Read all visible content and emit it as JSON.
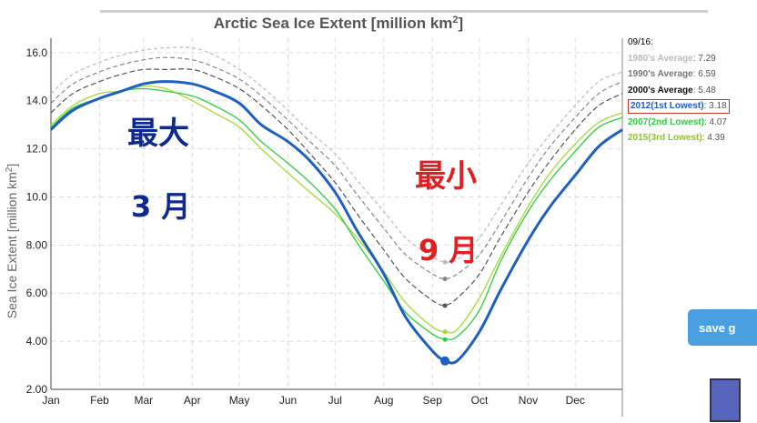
{
  "chart_data": {
    "type": "line",
    "title": "Arctic Sea Ice Extent [million km",
    "title_sup": "2",
    "title_end": "]",
    "ylabel": "Sea Ice Extent [million km",
    "ylabel_sup": "2",
    "ylabel_end": "]",
    "ylim": [
      2.0,
      16.6
    ],
    "yticks": [
      "2.00",
      "4.00",
      "6.00",
      "8.00",
      "10.0",
      "12.0",
      "14.0",
      "16.0"
    ],
    "ytick_values": [
      2,
      4,
      6,
      8,
      10,
      12,
      14,
      16
    ],
    "months": [
      "Jan",
      "Feb",
      "Mar",
      "Apr",
      "May",
      "Jun",
      "Jul",
      "Aug",
      "Sep",
      "Oct",
      "Nov",
      "Dec"
    ],
    "grid": true,
    "legend_position": "right",
    "x_day_of_year": [
      1,
      15,
      32,
      46,
      60,
      74,
      91,
      105,
      121,
      135,
      152,
      166,
      182,
      196,
      213,
      227,
      244,
      252,
      260,
      274,
      288,
      305,
      319,
      335,
      350,
      365
    ],
    "series": [
      {
        "name": "1980's Average",
        "legend_value": "7.29",
        "color": "#bbbbbb",
        "dash": "4,3",
        "values": [
          14.3,
          15.1,
          15.6,
          15.9,
          16.1,
          16.2,
          16.2,
          15.9,
          15.3,
          14.6,
          13.6,
          12.7,
          11.8,
          10.7,
          9.4,
          8.3,
          7.5,
          7.3,
          7.4,
          8.3,
          9.7,
          11.4,
          12.6,
          13.8,
          14.8,
          15.2
        ]
      },
      {
        "name": "1990's Average",
        "legend_value": "6.59",
        "color": "#888888",
        "dash": "5,3",
        "values": [
          13.9,
          14.7,
          15.2,
          15.5,
          15.7,
          15.8,
          15.7,
          15.4,
          14.9,
          14.2,
          13.2,
          12.3,
          11.3,
          10.1,
          8.7,
          7.6,
          6.8,
          6.6,
          6.8,
          7.6,
          9.0,
          10.8,
          12.1,
          13.3,
          14.3,
          14.8
        ]
      },
      {
        "name": "2000's Average",
        "legend_value": "5.48",
        "color": "#555555",
        "dash": "6,3",
        "values": [
          13.5,
          14.3,
          14.8,
          15.1,
          15.3,
          15.3,
          15.3,
          15.0,
          14.5,
          13.8,
          12.8,
          11.8,
          10.6,
          9.3,
          7.8,
          6.6,
          5.7,
          5.5,
          5.8,
          6.8,
          8.4,
          10.2,
          11.5,
          12.8,
          13.8,
          14.3
        ]
      },
      {
        "name": "2012(1st Lowest)",
        "legend_value": "3.18",
        "color": "#1f5fbf",
        "dash": "",
        "values": [
          12.8,
          13.6,
          14.1,
          14.4,
          14.7,
          14.8,
          14.7,
          14.4,
          13.9,
          13.0,
          12.3,
          11.5,
          10.2,
          8.6,
          6.8,
          5.0,
          3.6,
          3.2,
          3.2,
          4.4,
          6.2,
          8.2,
          9.6,
          10.9,
          12.1,
          12.8
        ]
      },
      {
        "name": "2007(2nd Lowest)",
        "legend_value": "4.07",
        "color": "#2ecc40",
        "dash": "",
        "values": [
          12.9,
          13.7,
          14.1,
          14.4,
          14.5,
          14.4,
          14.2,
          13.8,
          13.2,
          12.3,
          11.4,
          10.6,
          9.5,
          8.1,
          6.5,
          5.2,
          4.3,
          4.1,
          4.2,
          5.3,
          7.4,
          9.4,
          10.7,
          11.9,
          12.9,
          13.3
        ]
      },
      {
        "name": "2015(3rd Lowest)",
        "legend_value": "4.39",
        "color": "#a6d93a",
        "dash": "",
        "values": [
          13.0,
          13.8,
          14.3,
          14.4,
          14.6,
          14.5,
          14.0,
          13.5,
          12.9,
          12.0,
          11.0,
          10.2,
          9.3,
          8.3,
          6.9,
          5.6,
          4.6,
          4.4,
          4.5,
          5.8,
          7.6,
          9.6,
          11.0,
          12.2,
          13.1,
          13.5
        ]
      }
    ],
    "date_label": "09/16:",
    "marker_day": 252,
    "annotations": {
      "max_title": "最大",
      "max_month": "3 月",
      "min_title": "最小",
      "min_month": "9 月"
    }
  },
  "ui": {
    "save_button": "save g"
  },
  "colors": {
    "annotation_max": "#0f2a8f",
    "annotation_min": "#e02020",
    "grid": "#dddddd",
    "save_button_bg": "#4a9fe0"
  }
}
